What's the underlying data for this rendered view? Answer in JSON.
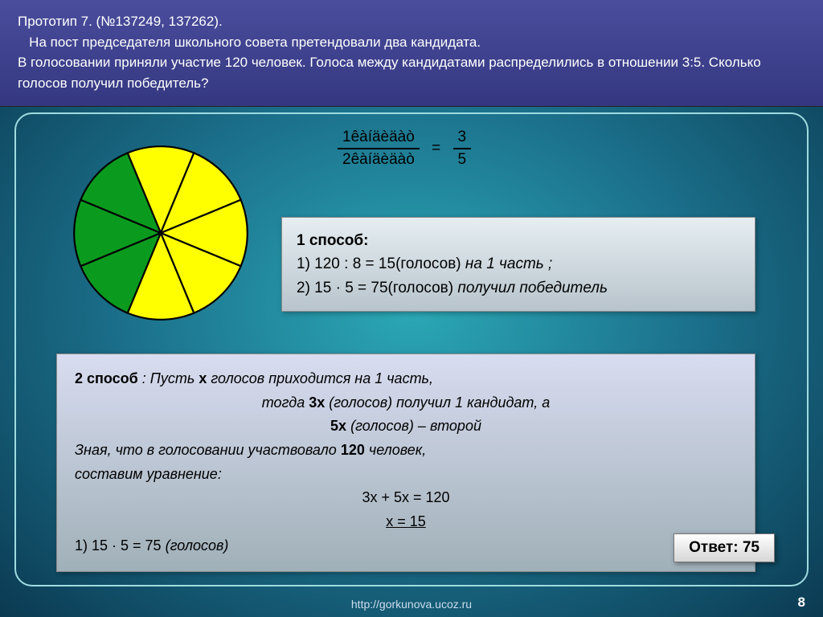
{
  "header": {
    "line1": "Прототип 7. (№137249, 137262).",
    "line2": "   На пост председателя школьного совета претендовали два кандидата.",
    "line3": "В голосовании приняли участие 120 человек. Голоса между кандидатами распределились в отношении 3:5. Сколько голосов получил победитель?"
  },
  "pie": {
    "slices": 8,
    "slice_colors": [
      "#ffff00",
      "#ffff00",
      "#ffff00",
      "#ffff00",
      "#ffff00",
      "#0a9b1e",
      "#0a9b1e",
      "#0a9b1e"
    ],
    "divider_color": "#000000",
    "divider_width": 2
  },
  "formula": {
    "num": "1êàíäèäàò",
    "den": "2êàíäèäàò",
    "rhs_num": "3",
    "rhs_den": "5"
  },
  "method1": {
    "title": "1 способ:",
    "l1a": "1) 120 : 8 = 15(голосов) ",
    "l1b": "на 1 часть ;",
    "l2a": "2) 15 · 5 = 75(голосов) ",
    "l2b": "получил победитель"
  },
  "method2": {
    "t1a": "2 способ",
    "t1b": ": Пусть ",
    "t1c": "х",
    "t1d": " голосов приходится на 1 часть,",
    "t2a": "тогда ",
    "t2b": "3х",
    "t2c": " (голосов)  получил 1 кандидат, а",
    "t3a": "5х",
    "t3b": " (голосов) – второй",
    "t4a": "Зная, что в голосовании участвовало ",
    "t4b": "120",
    "t4c": " человек,",
    "t5": "составим уравнение:",
    "eq1": "3х + 5х = 120",
    "eq2": "х = 15",
    "res": "1) 15 · 5 = 75 ",
    "res_em": "(голосов)"
  },
  "answer_label": "Ответ:   75",
  "footer_url": "http://gorkunova.ucoz.ru",
  "page_number": "8",
  "colors": {
    "header_bg_top": "#4a4d9c",
    "header_bg_bot": "#343780",
    "bg_inner": "#2ba8b5",
    "bg_outer": "#0b3a52",
    "frame": "#9fdce0"
  }
}
